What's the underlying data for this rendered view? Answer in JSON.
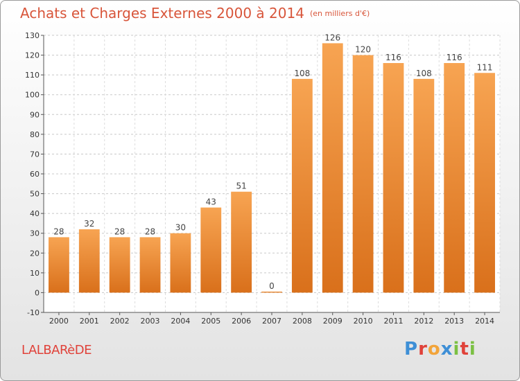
{
  "header": {
    "title": "Achats et Charges Externes 2000 à 2014",
    "unit": "(en milliers d'€)"
  },
  "footer": {
    "town": "LALBARèDE",
    "logo_letters": [
      "P",
      "r",
      "o",
      "x",
      "i",
      "t",
      "i"
    ],
    "logo_colors": [
      "#3e8fd6",
      "#e0423a",
      "#f2a43a",
      "#3e8fd6",
      "#7bc043",
      "#e0423a",
      "#7bc043"
    ]
  },
  "chart_data": {
    "type": "bar",
    "title": "Achats et Charges Externes 2000 à 2014",
    "subtitle": "(en milliers d'€)",
    "categories": [
      "2000",
      "2001",
      "2002",
      "2003",
      "2004",
      "2005",
      "2006",
      "2007",
      "2008",
      "2009",
      "2010",
      "2011",
      "2012",
      "2013",
      "2014"
    ],
    "values": [
      28,
      32,
      28,
      28,
      30,
      43,
      51,
      0,
      108,
      126,
      120,
      116,
      108,
      116,
      111
    ],
    "ylim": [
      -10,
      130
    ],
    "yticks": [
      -10,
      0,
      10,
      20,
      30,
      40,
      50,
      60,
      70,
      80,
      90,
      100,
      110,
      120,
      130
    ],
    "grid": true,
    "bar_color": "#f08a24"
  }
}
